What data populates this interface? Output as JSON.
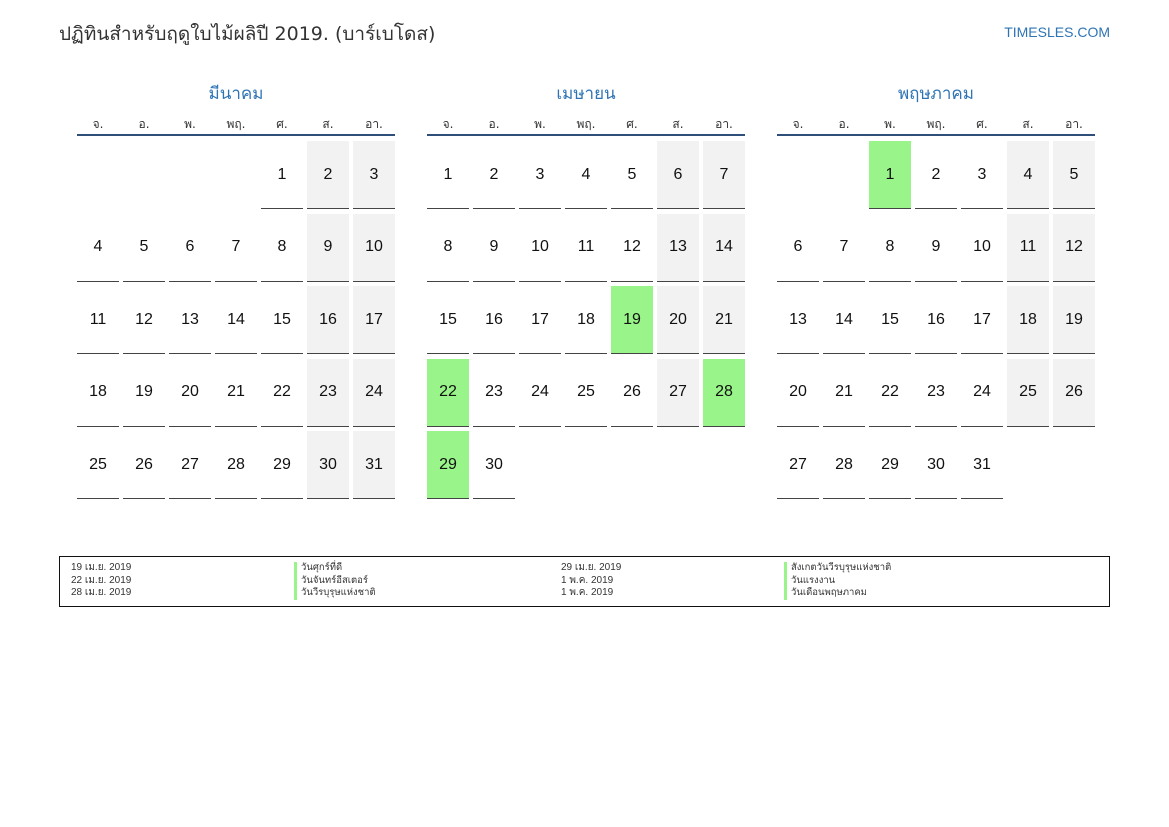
{
  "header": {
    "title": "ปฏิทินสำหรับฤดูใบไม้ผลิปี 2019. (บาร์เบโดส)",
    "brand": "TIMESLES.COM"
  },
  "colors": {
    "accent": "#2e74b5",
    "holiday": "#99f589",
    "weekend": "#f2f2f2",
    "header_rule": "#2e4f7a"
  },
  "weekdays": [
    "จ.",
    "อ.",
    "พ.",
    "พฤ.",
    "ศ.",
    "ส.",
    "อา."
  ],
  "months": [
    {
      "name": "มีนาคม",
      "weeks": [
        [
          null,
          null,
          null,
          null,
          1,
          2,
          3
        ],
        [
          4,
          5,
          6,
          7,
          8,
          9,
          10
        ],
        [
          11,
          12,
          13,
          14,
          15,
          16,
          17
        ],
        [
          18,
          19,
          20,
          21,
          22,
          23,
          24
        ],
        [
          25,
          26,
          27,
          28,
          29,
          30,
          31
        ]
      ],
      "holidays": []
    },
    {
      "name": "เมษายน",
      "weeks": [
        [
          1,
          2,
          3,
          4,
          5,
          6,
          7
        ],
        [
          8,
          9,
          10,
          11,
          12,
          13,
          14
        ],
        [
          15,
          16,
          17,
          18,
          19,
          20,
          21
        ],
        [
          22,
          23,
          24,
          25,
          26,
          27,
          28
        ],
        [
          29,
          30,
          null,
          null,
          null,
          null,
          null
        ]
      ],
      "holidays": [
        19,
        22,
        28,
        29
      ]
    },
    {
      "name": "พฤษภาคม",
      "weeks": [
        [
          null,
          null,
          1,
          2,
          3,
          4,
          5
        ],
        [
          6,
          7,
          8,
          9,
          10,
          11,
          12
        ],
        [
          13,
          14,
          15,
          16,
          17,
          18,
          19
        ],
        [
          20,
          21,
          22,
          23,
          24,
          25,
          26
        ],
        [
          27,
          28,
          29,
          30,
          31,
          null,
          null
        ]
      ],
      "holidays": [
        1
      ]
    }
  ],
  "legend": {
    "rows": [
      {
        "left": {
          "date": "19 เม.ย. 2019",
          "name": "วันศุกร์ที่ดี"
        },
        "right": {
          "date": "29 เม.ย. 2019",
          "name": "สังเกตวันวีรบุรุษแห่งชาติ"
        }
      },
      {
        "left": {
          "date": "22 เม.ย. 2019",
          "name": "วันจันทร์อีสเตอร์"
        },
        "right": {
          "date": "1 พ.ค. 2019",
          "name": "วันแรงงาน"
        }
      },
      {
        "left": {
          "date": "28 เม.ย. 2019",
          "name": "วันวีรบุรุษแห่งชาติ"
        },
        "right": {
          "date": "1 พ.ค. 2019",
          "name": "วันเดือนพฤษภาคม"
        }
      }
    ]
  }
}
